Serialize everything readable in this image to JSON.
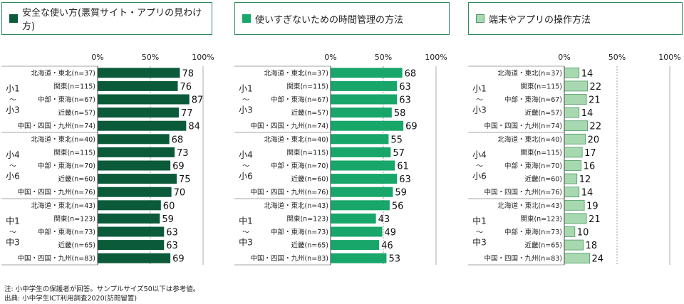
{
  "notes": {
    "line1": "注: 小中学生の保護者が回答。サンプルサイズ50以下は参考値。",
    "line2": "出典: 小中学生ICT利用調査2020(訪問留置)"
  },
  "chart_data": [
    {
      "type": "bar",
      "title": "安全な使い方(悪質サイト・アプリの見わけ方)",
      "color": "#0b5a3a",
      "xlim": [
        0,
        100
      ],
      "ticks": [
        "0%",
        "50%",
        "100%"
      ],
      "groups": [
        {
          "label": [
            "小1",
            "～",
            "小3"
          ],
          "categories": [
            "北海道・東北(n=37)",
            "関東(n=115)",
            "中部・東海(n=67)",
            "近畿(n=57)",
            "中国・四国・九州(n=74)"
          ],
          "values": [
            78,
            76,
            87,
            77,
            84
          ]
        },
        {
          "label": [
            "小4",
            "～",
            "小6"
          ],
          "categories": [
            "北海道・東北(n=40)",
            "関東(n=115)",
            "中部・東海(n=70)",
            "近畿(n=60)",
            "中国・四国・九州(n=76)"
          ],
          "values": [
            68,
            73,
            69,
            75,
            70
          ]
        },
        {
          "label": [
            "中1",
            "～",
            "中3"
          ],
          "categories": [
            "北海道・東北(n=43)",
            "関東(n=123)",
            "中部・東海(n=73)",
            "近畿(n=65)",
            "中国・四国・九州(n=83)"
          ],
          "values": [
            60,
            59,
            63,
            63,
            69
          ]
        }
      ]
    },
    {
      "type": "bar",
      "title": "使いすぎないための時間管理の方法",
      "color": "#18a66a",
      "xlim": [
        0,
        100
      ],
      "ticks": [
        "0%",
        "50%",
        "100%"
      ],
      "groups": [
        {
          "label": [
            "小1",
            "～",
            "小3"
          ],
          "categories": [
            "北海道・東北(n=37)",
            "関東(n=115)",
            "中部・東海(n=67)",
            "近畿(n=57)",
            "中国・四国・九州(n=74)"
          ],
          "values": [
            68,
            63,
            63,
            58,
            69
          ]
        },
        {
          "label": [
            "小4",
            "～",
            "小6"
          ],
          "categories": [
            "北海道・東北(n=40)",
            "関東(n=115)",
            "中部・東海(n=70)",
            "近畿(n=60)",
            "中国・四国・九州(n=76)"
          ],
          "values": [
            55,
            57,
            61,
            63,
            59
          ]
        },
        {
          "label": [
            "中1",
            "～",
            "中3"
          ],
          "categories": [
            "北海道・東北(n=43)",
            "関東(n=123)",
            "中部・東海(n=73)",
            "近畿(n=65)",
            "中国・四国・九州(n=83)"
          ],
          "values": [
            56,
            43,
            49,
            46,
            53
          ]
        }
      ]
    },
    {
      "type": "bar",
      "title": "端末やアプリの操作方法",
      "color": "#a8d8b0",
      "xlim": [
        0,
        100
      ],
      "ticks": [
        "0%",
        "50%",
        "100%"
      ],
      "groups": [
        {
          "label": [
            "小1",
            "～",
            "小3"
          ],
          "categories": [
            "北海道・東北(n=37)",
            "関東(n=115)",
            "中部・東海(n=67)",
            "近畿(n=57)",
            "中国・四国・九州(n=74)"
          ],
          "values": [
            14,
            22,
            21,
            14,
            22
          ]
        },
        {
          "label": [
            "小4",
            "～",
            "小6"
          ],
          "categories": [
            "北海道・東北(n=40)",
            "関東(n=115)",
            "中部・東海(n=70)",
            "近畿(n=60)",
            "中国・四国・九州(n=76)"
          ],
          "values": [
            20,
            17,
            16,
            12,
            14
          ]
        },
        {
          "label": [
            "中1",
            "～",
            "中3"
          ],
          "categories": [
            "北海道・東北(n=43)",
            "関東(n=123)",
            "中部・東海(n=73)",
            "近畿(n=65)",
            "中国・四国・九州(n=83)"
          ],
          "values": [
            19,
            21,
            10,
            18,
            24
          ]
        }
      ]
    }
  ]
}
